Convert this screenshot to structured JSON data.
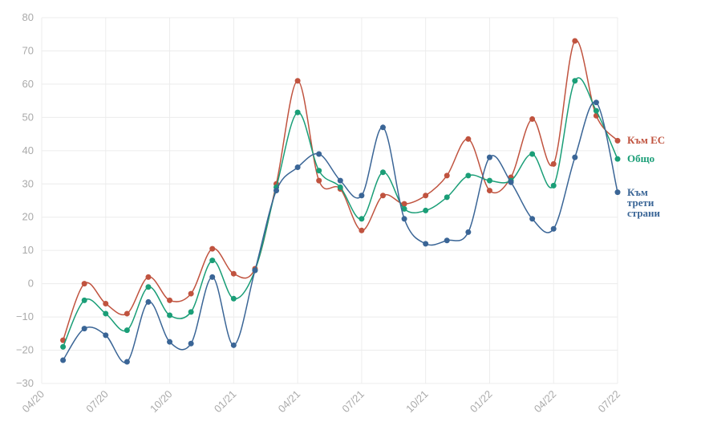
{
  "chart_data": {
    "type": "line",
    "x": [
      "05/20",
      "06/20",
      "07/20",
      "08/20",
      "09/20",
      "10/20",
      "11/20",
      "12/20",
      "01/21",
      "02/21",
      "03/21",
      "04/21",
      "05/21",
      "06/21",
      "07/21",
      "08/21",
      "09/21",
      "10/21",
      "11/21",
      "12/21",
      "01/22",
      "02/22",
      "03/22",
      "04/22",
      "05/22",
      "06/22",
      "07/22"
    ],
    "xlim": [
      "04/20",
      "07/22"
    ],
    "xticks": [
      "04/20",
      "07/20",
      "10/20",
      "01/21",
      "04/21",
      "07/21",
      "10/21",
      "01/22",
      "04/22",
      "07/22"
    ],
    "ylim": [
      -30,
      80
    ],
    "yticks": [
      {
        "value": -30,
        "label": "−30"
      },
      {
        "value": -20,
        "label": "−20"
      },
      {
        "value": -10,
        "label": "−10"
      },
      0,
      10,
      20,
      30,
      40,
      50,
      60,
      70,
      80
    ],
    "grid": true,
    "series": [
      {
        "name": "Към ЕС",
        "color": "#c0533f",
        "values": [
          -17,
          0,
          -6,
          -9,
          2,
          -5,
          -3,
          10.5,
          3,
          4.5,
          30,
          61,
          31,
          28.5,
          16,
          26.5,
          24,
          26.5,
          32.5,
          43.5,
          28,
          32,
          49.5,
          36,
          73,
          50.5,
          43
        ]
      },
      {
        "name": "Общо",
        "color": "#1a9e77",
        "values": [
          -19,
          -5,
          -9,
          -14,
          -1,
          -9.5,
          -8.5,
          7,
          -4.5,
          4,
          29,
          51.5,
          34,
          29,
          19.5,
          33.5,
          22.5,
          22,
          26,
          32.5,
          31,
          31,
          39,
          29.5,
          61,
          52,
          37.5
        ]
      },
      {
        "name": "Към трети страни",
        "color": "#3a6596",
        "values": [
          -23,
          -13.5,
          -15.5,
          -23.5,
          -5.5,
          -17.5,
          -18,
          2,
          -18.5,
          4,
          28,
          35,
          39,
          31,
          26.5,
          47,
          19.5,
          12,
          13,
          15.5,
          38,
          30.5,
          19.5,
          16.5,
          38,
          54.5,
          27.5
        ]
      }
    ]
  }
}
